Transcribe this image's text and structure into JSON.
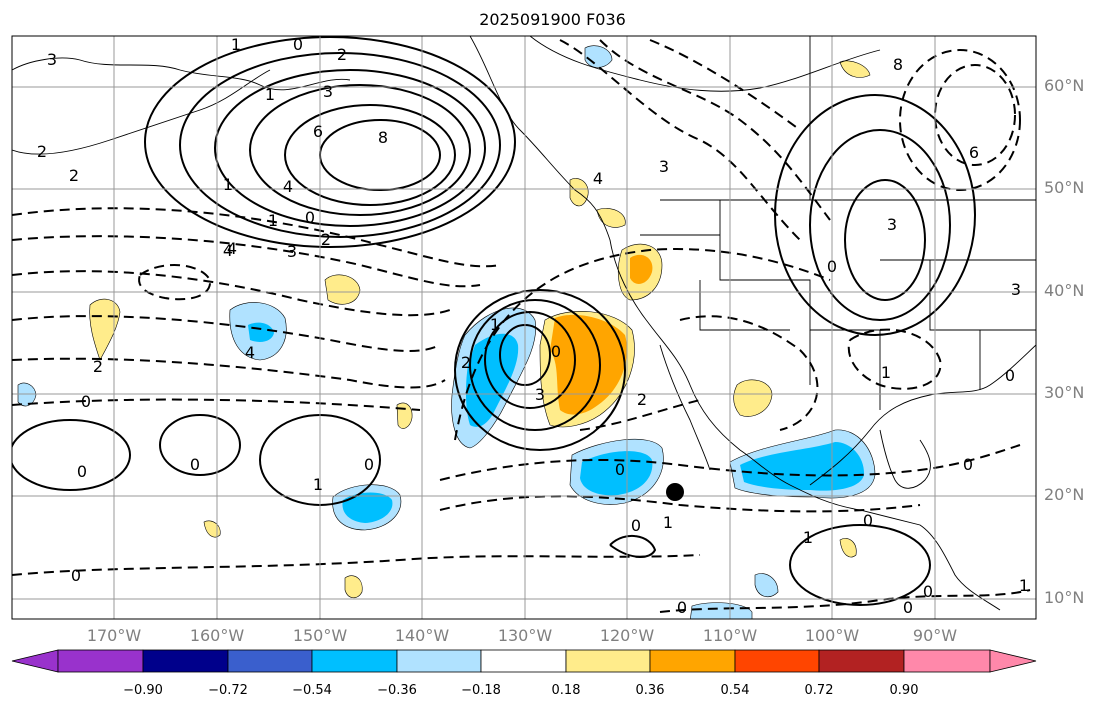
{
  "title": "2025091900 F036",
  "lat_labels": [
    "60°N",
    "50°N",
    "40°N",
    "30°N",
    "20°N",
    "10°N"
  ],
  "lon_labels": [
    "170°W",
    "160°W",
    "150°W",
    "140°W",
    "130°W",
    "120°W",
    "110°W",
    "100°W",
    "90°W"
  ],
  "colorbar": {
    "colors": [
      "#9932cc",
      "#00008b",
      "#3a5fcd",
      "#00bfff",
      "#b0e2ff",
      "#ffffff",
      "#ffec8b",
      "#ffa500",
      "#ff4500",
      "#b22222",
      "#ff88aa"
    ],
    "labels": [
      "−0.90",
      "−0.72",
      "−0.54",
      "−0.36",
      "−0.18",
      "0.18",
      "0.36",
      "0.54",
      "0.72",
      "0.90"
    ]
  },
  "contour_labels": [
    "3",
    "1",
    "0",
    "2",
    "3",
    "1",
    "6",
    "8",
    "4",
    "2",
    "2",
    "1",
    "4",
    "0",
    "1",
    "2",
    "3",
    "4",
    "2",
    "0",
    "0",
    "0",
    "1",
    "0",
    "4",
    "3",
    "1",
    "2",
    "0",
    "0",
    "1",
    "0",
    "0",
    "0",
    "1",
    "0",
    "3",
    "6",
    "4",
    "3",
    "2",
    "8",
    "0",
    "1",
    "0",
    "3",
    "0",
    "0",
    "0",
    "1"
  ],
  "marker_name": "storm-center"
}
